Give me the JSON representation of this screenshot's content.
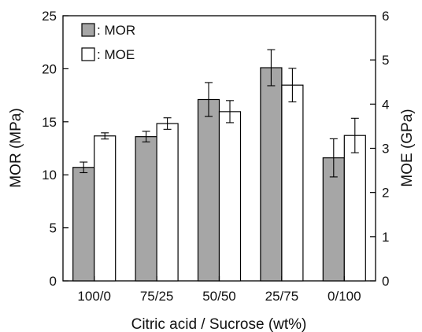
{
  "chart_data": {
    "type": "bar",
    "xlabel": "Citric acid / Sucrose (wt%)",
    "ylabel_left": "MOR (MPa)",
    "ylabel_right": "MOE (GPa)",
    "categories": [
      "100/0",
      "75/25",
      "50/50",
      "25/75",
      "0/100"
    ],
    "ylim_left": [
      0,
      25
    ],
    "ylim_right": [
      0,
      6
    ],
    "yticks_left": [
      "0",
      "5",
      "10",
      "15",
      "20",
      "25"
    ],
    "yticks_right": [
      "0",
      "1",
      "2",
      "3",
      "4",
      "5",
      "6"
    ],
    "grid": false,
    "legend_position": "top-left",
    "series": [
      {
        "name": ": MOR",
        "axis": "left",
        "color": "#a6a6a6",
        "values": [
          10.7,
          13.6,
          17.1,
          20.1,
          11.6
        ],
        "errors": [
          0.5,
          0.5,
          1.6,
          1.7,
          1.8
        ]
      },
      {
        "name": ": MOE",
        "axis": "right",
        "color": "#ffffff",
        "values": [
          3.28,
          3.56,
          3.83,
          4.43,
          3.29
        ],
        "errors": [
          0.07,
          0.13,
          0.25,
          0.38,
          0.39
        ]
      }
    ]
  }
}
